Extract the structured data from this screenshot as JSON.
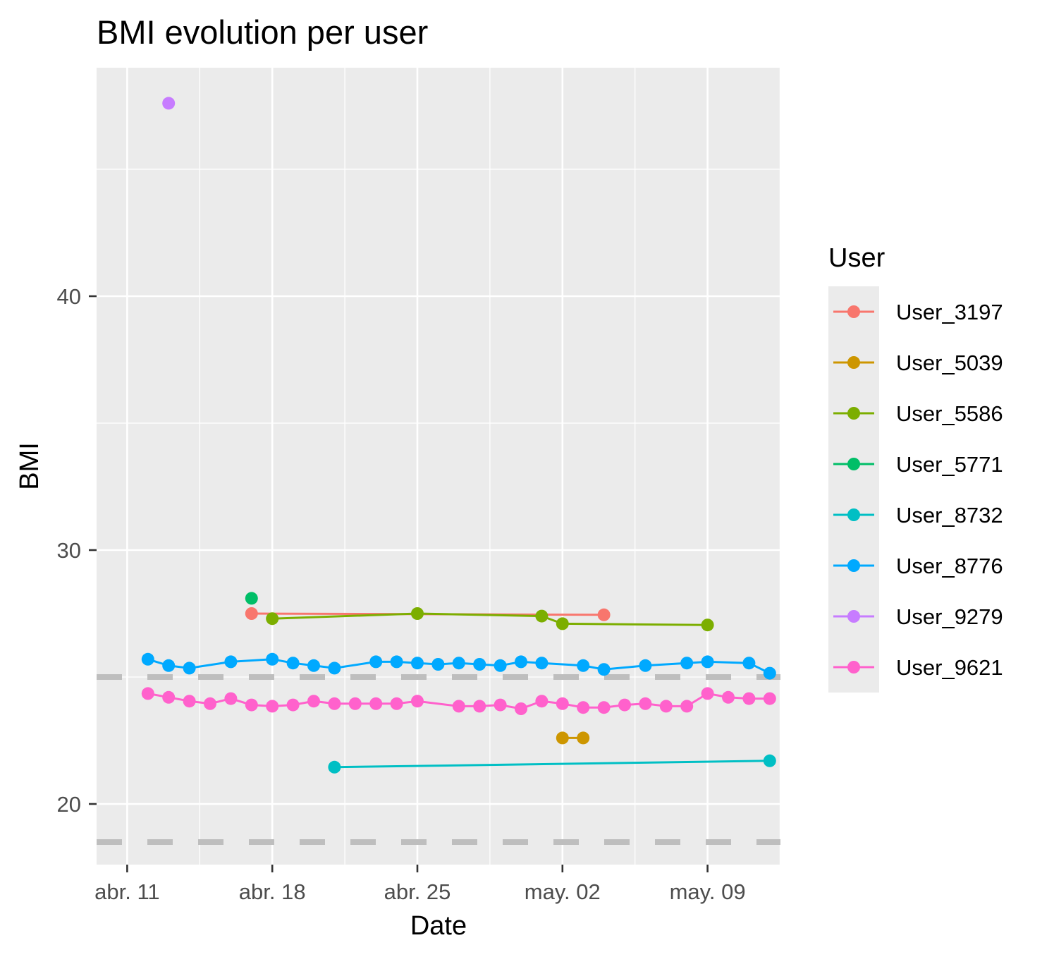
{
  "chart_data": {
    "type": "line",
    "title": "BMI evolution per user",
    "xlabel": "Date",
    "ylabel": "BMI",
    "x_axis": {
      "kind": "date",
      "range": [
        "2024-04-10",
        "2024-05-13"
      ],
      "ticks": [
        "2024-04-11",
        "2024-04-18",
        "2024-04-25",
        "2024-05-02",
        "2024-05-09"
      ],
      "tick_labels": [
        "abr. 11",
        "abr. 18",
        "abr. 25",
        "may. 02",
        "may. 09"
      ]
    },
    "y_axis": {
      "range": [
        17.5,
        48.3
      ],
      "ticks": [
        20,
        30,
        40
      ],
      "tick_labels": [
        "20",
        "30",
        "40"
      ]
    },
    "grid": true,
    "reference_lines": [
      {
        "y": 25,
        "style": "dashed",
        "color": "#bebebe"
      },
      {
        "y": 18.5,
        "style": "dashed",
        "color": "#bebebe"
      }
    ],
    "legend": {
      "title": "User",
      "position": "right"
    },
    "series": [
      {
        "name": "User_3197",
        "color": "#F8766D",
        "points": [
          [
            "2024-04-17",
            27.5
          ],
          [
            "2024-05-04",
            27.45
          ]
        ]
      },
      {
        "name": "User_5039",
        "color": "#CD9600",
        "points": [
          [
            "2024-05-02",
            22.6
          ],
          [
            "2024-05-03",
            22.6
          ]
        ]
      },
      {
        "name": "User_5586",
        "color": "#7CAE00",
        "points": [
          [
            "2024-04-18",
            27.3
          ],
          [
            "2024-04-25",
            27.5
          ],
          [
            "2024-05-01",
            27.4
          ],
          [
            "2024-05-02",
            27.1
          ],
          [
            "2024-05-09",
            27.05
          ]
        ]
      },
      {
        "name": "User_5771",
        "color": "#00BE67",
        "points": [
          [
            "2024-04-17",
            28.1
          ]
        ]
      },
      {
        "name": "User_8732",
        "color": "#00BFC4",
        "points": [
          [
            "2024-04-21",
            21.45
          ],
          [
            "2024-05-12",
            21.7
          ]
        ]
      },
      {
        "name": "User_8776",
        "color": "#00A9FF",
        "points": [
          [
            "2024-04-12",
            25.7
          ],
          [
            "2024-04-13",
            25.45
          ],
          [
            "2024-04-14",
            25.35
          ],
          [
            "2024-04-16",
            25.6
          ],
          [
            "2024-04-18",
            25.7
          ],
          [
            "2024-04-19",
            25.55
          ],
          [
            "2024-04-20",
            25.45
          ],
          [
            "2024-04-21",
            25.35
          ],
          [
            "2024-04-23",
            25.6
          ],
          [
            "2024-04-24",
            25.6
          ],
          [
            "2024-04-25",
            25.55
          ],
          [
            "2024-04-26",
            25.5
          ],
          [
            "2024-04-27",
            25.55
          ],
          [
            "2024-04-28",
            25.5
          ],
          [
            "2024-04-29",
            25.45
          ],
          [
            "2024-04-30",
            25.6
          ],
          [
            "2024-05-01",
            25.55
          ],
          [
            "2024-05-03",
            25.45
          ],
          [
            "2024-05-04",
            25.3
          ],
          [
            "2024-05-06",
            25.45
          ],
          [
            "2024-05-08",
            25.55
          ],
          [
            "2024-05-09",
            25.6
          ],
          [
            "2024-05-11",
            25.55
          ],
          [
            "2024-05-12",
            25.15
          ]
        ]
      },
      {
        "name": "User_9279",
        "color": "#C77CFF",
        "points": [
          [
            "2024-04-13",
            47.6
          ]
        ]
      },
      {
        "name": "User_9621",
        "color": "#FF61CC",
        "points": [
          [
            "2024-04-12",
            24.35
          ],
          [
            "2024-04-13",
            24.2
          ],
          [
            "2024-04-14",
            24.05
          ],
          [
            "2024-04-15",
            23.95
          ],
          [
            "2024-04-16",
            24.15
          ],
          [
            "2024-04-17",
            23.9
          ],
          [
            "2024-04-18",
            23.85
          ],
          [
            "2024-04-19",
            23.9
          ],
          [
            "2024-04-20",
            24.05
          ],
          [
            "2024-04-21",
            23.95
          ],
          [
            "2024-04-22",
            23.95
          ],
          [
            "2024-04-23",
            23.95
          ],
          [
            "2024-04-24",
            23.95
          ],
          [
            "2024-04-25",
            24.05
          ],
          [
            "2024-04-27",
            23.85
          ],
          [
            "2024-04-28",
            23.85
          ],
          [
            "2024-04-29",
            23.9
          ],
          [
            "2024-04-30",
            23.75
          ],
          [
            "2024-05-01",
            24.05
          ],
          [
            "2024-05-02",
            23.95
          ],
          [
            "2024-05-03",
            23.8
          ],
          [
            "2024-05-04",
            23.8
          ],
          [
            "2024-05-05",
            23.9
          ],
          [
            "2024-05-06",
            23.95
          ],
          [
            "2024-05-07",
            23.85
          ],
          [
            "2024-05-08",
            23.85
          ],
          [
            "2024-05-09",
            24.35
          ],
          [
            "2024-05-10",
            24.2
          ],
          [
            "2024-05-11",
            24.15
          ],
          [
            "2024-05-12",
            24.15
          ]
        ]
      }
    ]
  }
}
